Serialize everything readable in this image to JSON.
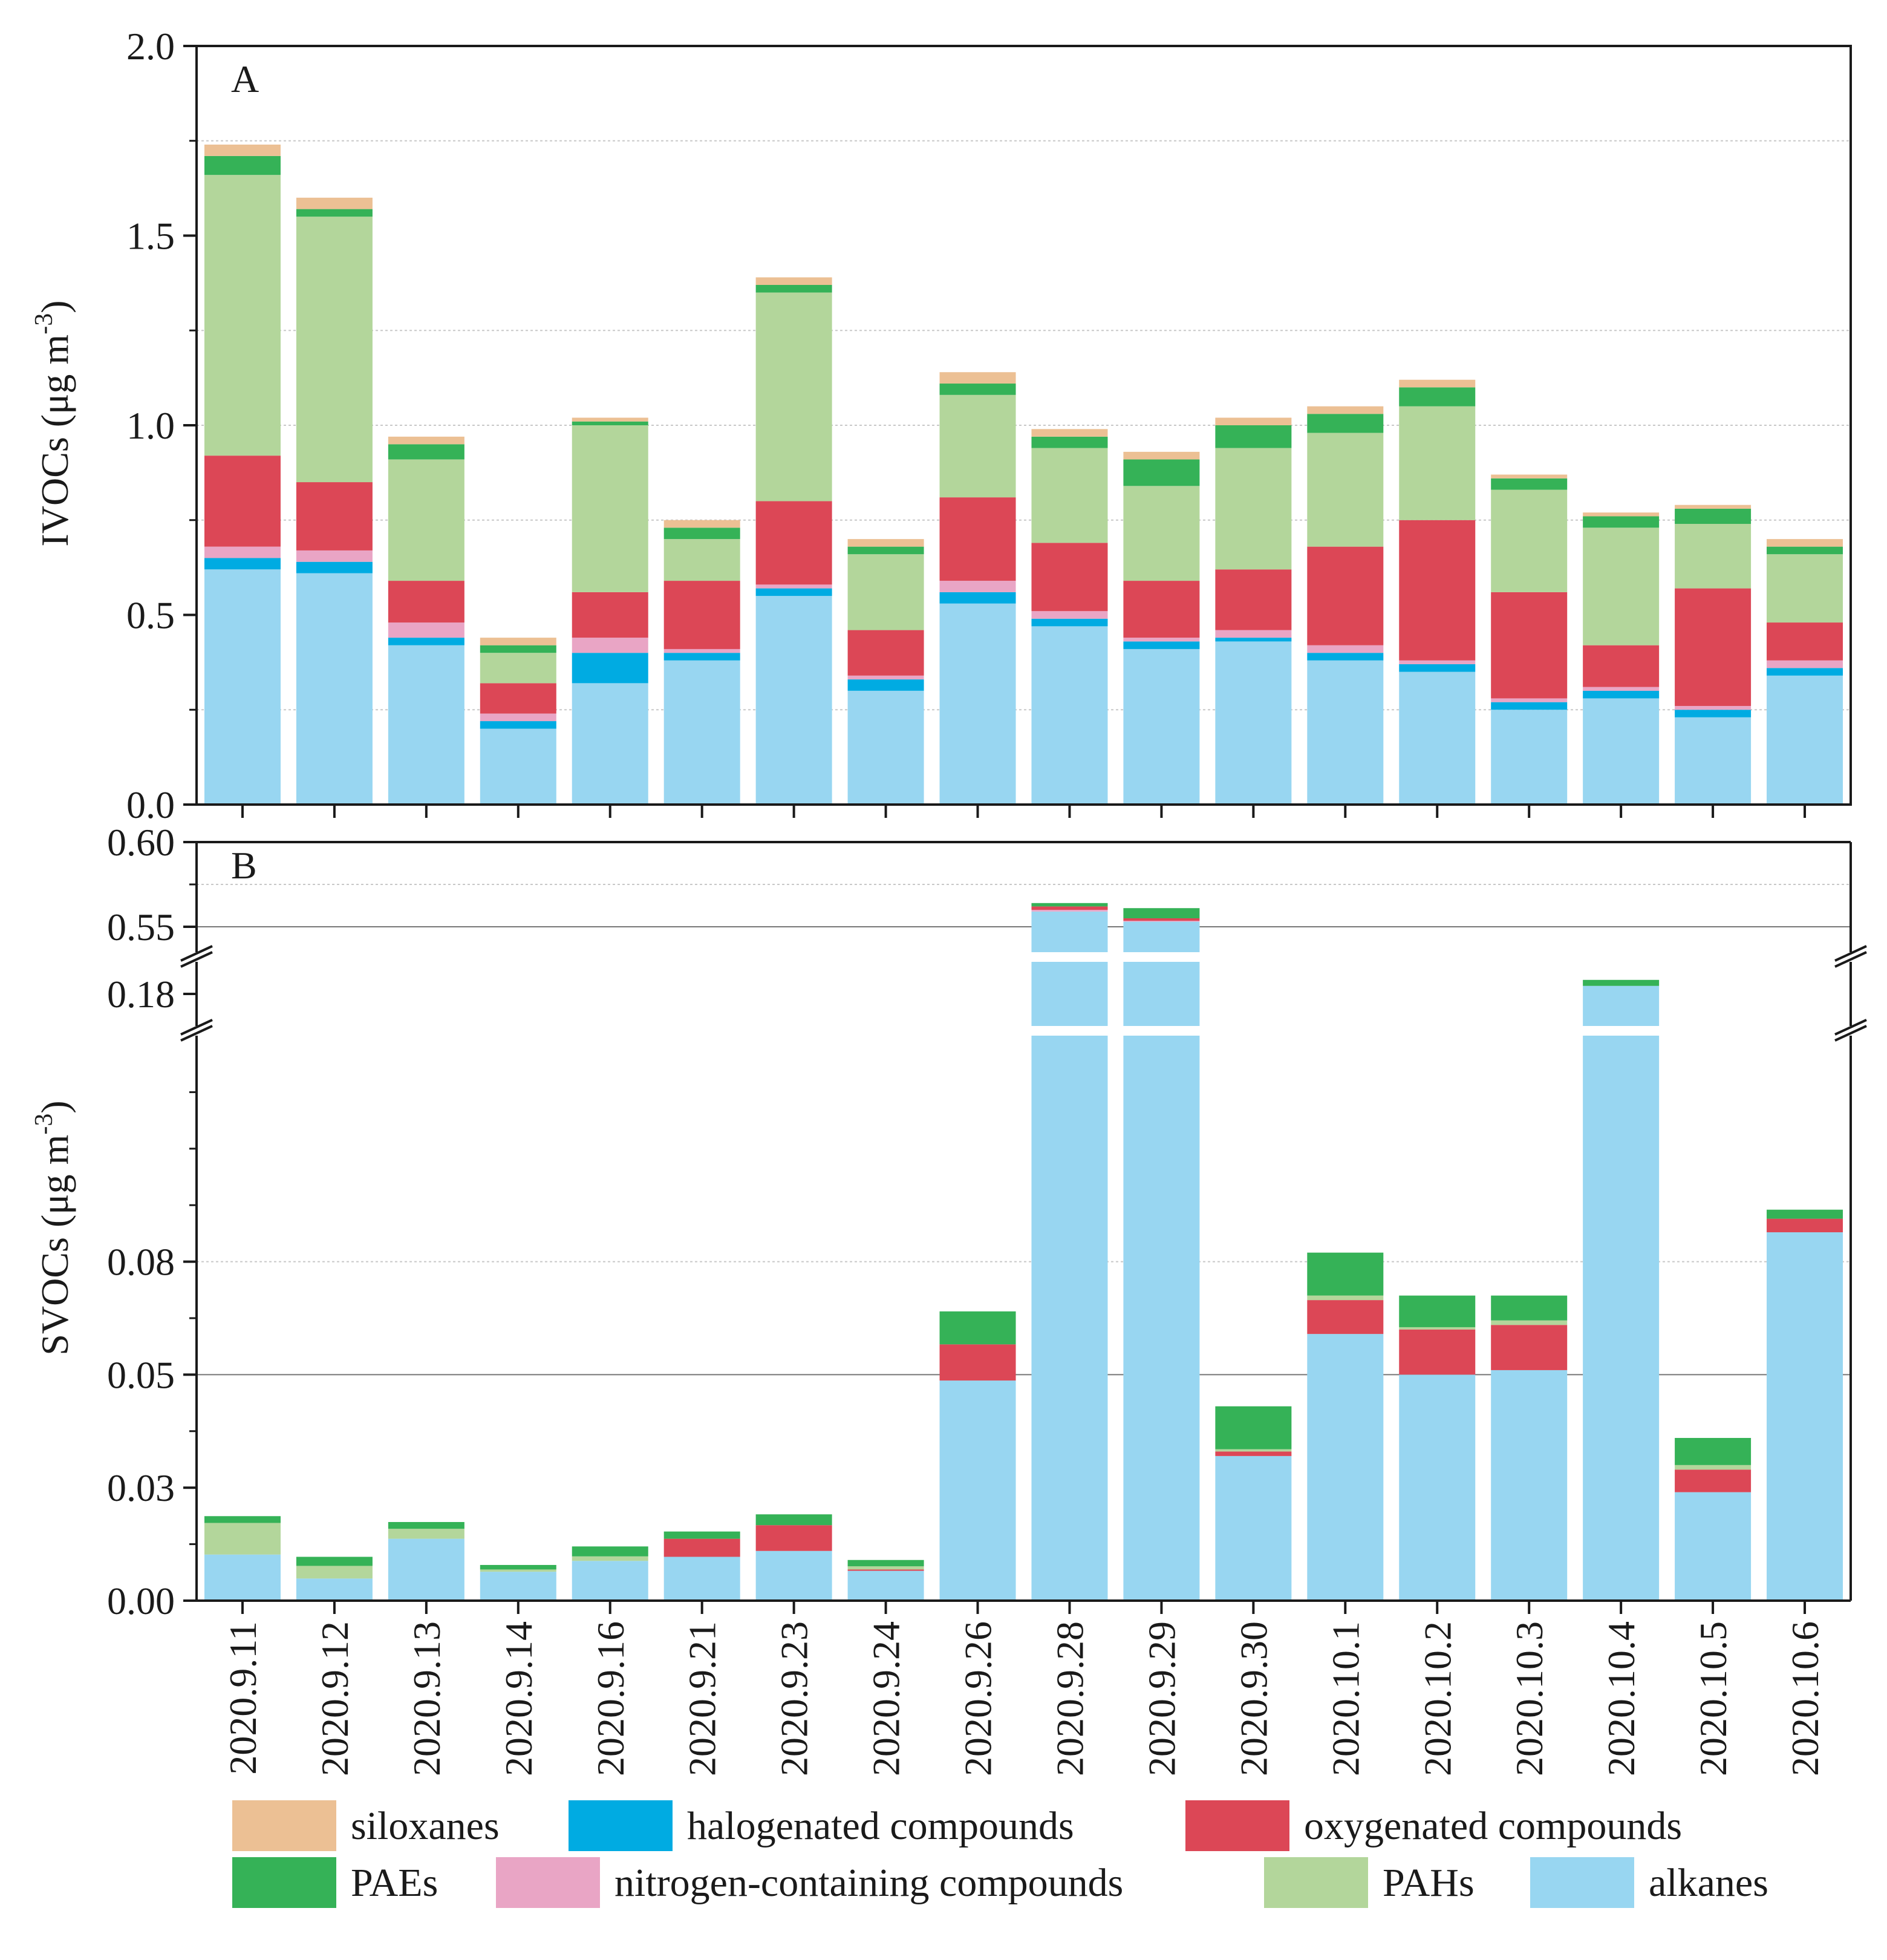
{
  "chart_data": [
    {
      "panel": "A",
      "type": "bar",
      "stacked": true,
      "ylabel": "IVOCs (μg m",
      "ylabel_sup": "-3",
      "ylabel_suffix": ")",
      "ylim": [
        0,
        2.0
      ],
      "y_ticks": [
        "0.0",
        "0.5",
        "1.0",
        "1.5",
        "2.0"
      ],
      "y_tick_values": [
        0,
        0.5,
        1.0,
        1.5,
        2.0
      ],
      "categories": [
        "2020.9.11",
        "2020.9.12",
        "2020.9.13",
        "2020.9.14",
        "2020.9.16",
        "2020.9.21",
        "2020.9.23",
        "2020.9.24",
        "2020.9.26",
        "2020.9.28",
        "2020.9.29",
        "2020.9.30",
        "2020.10.1",
        "2020.10.2",
        "2020.10.3",
        "2020.10.4",
        "2020.10.5",
        "2020.10.6"
      ],
      "series": [
        {
          "name": "alkanes",
          "values": [
            0.62,
            0.61,
            0.42,
            0.2,
            0.32,
            0.38,
            0.55,
            0.3,
            0.53,
            0.47,
            0.41,
            0.43,
            0.38,
            0.35,
            0.25,
            0.28,
            0.23,
            0.34
          ]
        },
        {
          "name": "halogenated compounds",
          "values": [
            0.03,
            0.03,
            0.02,
            0.02,
            0.08,
            0.02,
            0.02,
            0.03,
            0.03,
            0.02,
            0.02,
            0.01,
            0.02,
            0.02,
            0.02,
            0.02,
            0.02,
            0.02
          ]
        },
        {
          "name": "nitrogen-containing compounds",
          "values": [
            0.03,
            0.03,
            0.04,
            0.02,
            0.04,
            0.01,
            0.01,
            0.01,
            0.03,
            0.02,
            0.01,
            0.02,
            0.02,
            0.01,
            0.01,
            0.01,
            0.01,
            0.02
          ]
        },
        {
          "name": "oxygenated compounds",
          "values": [
            0.24,
            0.18,
            0.11,
            0.08,
            0.12,
            0.18,
            0.22,
            0.12,
            0.22,
            0.18,
            0.15,
            0.16,
            0.26,
            0.37,
            0.28,
            0.11,
            0.31,
            0.1
          ]
        },
        {
          "name": "PAHs",
          "values": [
            0.74,
            0.7,
            0.32,
            0.08,
            0.44,
            0.11,
            0.55,
            0.2,
            0.27,
            0.25,
            0.25,
            0.32,
            0.3,
            0.3,
            0.27,
            0.31,
            0.17,
            0.18
          ]
        },
        {
          "name": "PAEs",
          "values": [
            0.05,
            0.02,
            0.04,
            0.02,
            0.01,
            0.03,
            0.02,
            0.02,
            0.03,
            0.03,
            0.07,
            0.06,
            0.05,
            0.05,
            0.03,
            0.03,
            0.04,
            0.02
          ]
        },
        {
          "name": "siloxanes",
          "values": [
            0.03,
            0.03,
            0.02,
            0.02,
            0.01,
            0.02,
            0.02,
            0.02,
            0.03,
            0.02,
            0.02,
            0.02,
            0.02,
            0.02,
            0.01,
            0.01,
            0.01,
            0.02
          ]
        }
      ]
    },
    {
      "panel": "B",
      "type": "bar",
      "stacked": true,
      "broken_axis": true,
      "ylabel": "SVOCs (μg m",
      "ylabel_sup": "-3",
      "ylabel_suffix": ")",
      "y_ticks": [
        "0.00",
        "0.03",
        "0.05",
        "0.08",
        "0.18",
        "0.55",
        "0.60"
      ],
      "y_tick_values": [
        0,
        0.025,
        0.05,
        0.075,
        0.175,
        0.55,
        0.6
      ],
      "segments": [
        {
          "range": [
            0,
            0.125
          ]
        },
        {
          "range": [
            0.167,
            0.183
          ]
        },
        {
          "range": [
            0.535,
            0.6
          ]
        }
      ],
      "categories": [
        "2020.9.11",
        "2020.9.12",
        "2020.9.13",
        "2020.9.14",
        "2020.9.16",
        "2020.9.21",
        "2020.9.23",
        "2020.9.24",
        "2020.9.26",
        "2020.9.28",
        "2020.9.29",
        "2020.9.30",
        "2020.10.1",
        "2020.10.2",
        "2020.10.3",
        "2020.10.4",
        "2020.10.5",
        "2020.10.6"
      ],
      "series": [
        {
          "name": "alkanes",
          "values": [
            0.0102,
            0.0049,
            0.0137,
            0.0064,
            0.0088,
            0.0097,
            0.011,
            0.0066,
            0.0487,
            0.559,
            0.553,
            0.032,
            0.059,
            0.05,
            0.051,
            0.177,
            0.024,
            0.0815
          ]
        },
        {
          "name": "halogenated compounds",
          "values": [
            0,
            0,
            0,
            0,
            0,
            0,
            0,
            0,
            0,
            0,
            0,
            0,
            0,
            0,
            0,
            0,
            0,
            0
          ]
        },
        {
          "name": "nitrogen-containing compounds",
          "values": [
            0,
            0,
            0,
            0,
            0,
            0,
            0,
            0,
            0,
            0.001,
            0.0005,
            0,
            0,
            0,
            0,
            0,
            0,
            0
          ]
        },
        {
          "name": "oxygenated compounds",
          "values": [
            0,
            0,
            0,
            0,
            0,
            0.004,
            0.0057,
            0.0003,
            0.008,
            0.002,
            0.0015,
            0.001,
            0.0075,
            0.01,
            0.01,
            0,
            0.005,
            0.003
          ]
        },
        {
          "name": "PAHs",
          "values": [
            0.007,
            0.0028,
            0.0022,
            0.0005,
            0.001,
            0,
            0,
            0.0007,
            0,
            0,
            0,
            0.0005,
            0.001,
            0.0005,
            0.001,
            0,
            0.001,
            0
          ]
        },
        {
          "name": "PAEs",
          "values": [
            0.0015,
            0.002,
            0.0015,
            0.001,
            0.0022,
            0.0016,
            0.0024,
            0.0014,
            0.0073,
            0.002,
            0.006,
            0.0095,
            0.0095,
            0.007,
            0.0055,
            0.0015,
            0.006,
            0.002
          ]
        },
        {
          "name": "siloxanes",
          "values": [
            0,
            0,
            0,
            0,
            0,
            0,
            0,
            0,
            0,
            0,
            0,
            0,
            0,
            0,
            0,
            0,
            0,
            0
          ]
        }
      ]
    }
  ],
  "legend": [
    {
      "name": "siloxanes",
      "color": "#ecc094"
    },
    {
      "name": "halogenated compounds",
      "color": "#00abe2"
    },
    {
      "name": "oxygenated compounds",
      "color": "#dc4756"
    },
    {
      "name": "PAEs",
      "color": "#35b257"
    },
    {
      "name": "nitrogen-containing compounds",
      "color": "#e9a5c5"
    },
    {
      "name": "PAHs",
      "color": "#b3d69b"
    },
    {
      "name": "alkanes",
      "color": "#98d6f1"
    }
  ],
  "colors": {
    "alkanes": "#98d6f1",
    "halogenated compounds": "#00abe2",
    "nitrogen-containing compounds": "#e9a5c5",
    "oxygenated compounds": "#dc4756",
    "PAHs": "#b3d69b",
    "PAEs": "#35b257",
    "siloxanes": "#ecc094"
  }
}
